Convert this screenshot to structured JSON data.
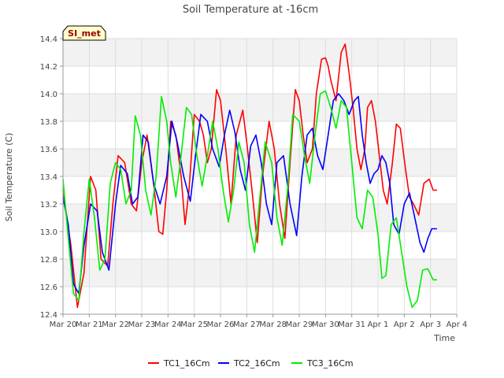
{
  "chart_data": {
    "type": "line",
    "title": "Soil Temperature at -16cm",
    "xlabel": "Time",
    "ylabel": "Soil Temperature (C)",
    "site_label": "SI_met",
    "ylim": [
      12.4,
      14.4
    ],
    "yticks": [
      12.4,
      12.6,
      12.8,
      13.0,
      13.2,
      13.4,
      13.6,
      13.8,
      14.0,
      14.2,
      14.4
    ],
    "xlim": [
      0,
      15
    ],
    "xticks": [
      0,
      1,
      2,
      3,
      4,
      5,
      6,
      7,
      8,
      9,
      10,
      11,
      12,
      13,
      14,
      15
    ],
    "xtick_labels": [
      "Mar 20",
      "Mar 21",
      "Mar 22",
      "Mar 23",
      "Mar 24",
      "Mar 25",
      "Mar 26",
      "Mar 27",
      "Mar 28",
      "Mar 29",
      "Mar 30",
      "Mar 31",
      "Apr 1",
      "Apr 2",
      "Apr 3",
      "Apr 4"
    ],
    "grid": true,
    "legend_position": "bottom",
    "series": [
      {
        "name": "TC1_16Cm",
        "color": "#ff0000",
        "x": [
          0.0,
          0.3,
          0.55,
          0.8,
          1.05,
          1.25,
          1.45,
          1.7,
          1.9,
          2.1,
          2.35,
          2.6,
          2.8,
          3.0,
          3.2,
          3.45,
          3.65,
          3.8,
          3.95,
          4.1,
          4.3,
          4.5,
          4.65,
          4.8,
          5.0,
          5.2,
          5.35,
          5.5,
          5.65,
          5.85,
          6.0,
          6.2,
          6.4,
          6.6,
          6.85,
          7.0,
          7.2,
          7.4,
          7.6,
          7.85,
          8.05,
          8.25,
          8.45,
          8.65,
          8.85,
          9.0,
          9.15,
          9.3,
          9.5,
          9.65,
          9.85,
          10.0,
          10.1,
          10.2,
          10.4,
          10.6,
          10.75,
          10.9,
          11.05,
          11.2,
          11.35,
          11.5,
          11.6,
          11.75,
          11.9,
          12.05,
          12.2,
          12.35,
          12.55,
          12.7,
          12.85,
          13.05,
          13.2,
          13.35,
          13.55,
          13.75,
          13.95,
          14.1,
          14.25
        ],
        "values": [
          13.3,
          12.9,
          12.45,
          12.7,
          13.4,
          13.3,
          12.8,
          12.75,
          13.2,
          13.55,
          13.5,
          13.2,
          13.15,
          13.5,
          13.7,
          13.35,
          13.0,
          12.98,
          13.3,
          13.8,
          13.7,
          13.4,
          13.05,
          13.3,
          13.85,
          13.8,
          13.7,
          13.5,
          13.6,
          14.03,
          13.95,
          13.6,
          13.2,
          13.7,
          13.88,
          13.65,
          13.3,
          12.92,
          13.4,
          13.8,
          13.6,
          13.2,
          12.95,
          13.5,
          14.03,
          13.95,
          13.7,
          13.5,
          13.6,
          14.0,
          14.25,
          14.26,
          14.2,
          14.1,
          13.95,
          14.3,
          14.36,
          14.15,
          13.9,
          13.6,
          13.45,
          13.6,
          13.9,
          13.95,
          13.8,
          13.55,
          13.3,
          13.2,
          13.5,
          13.78,
          13.75,
          13.45,
          13.25,
          13.2,
          13.12,
          13.35,
          13.38,
          13.3,
          13.3
        ]
      },
      {
        "name": "TC2_16Cm",
        "color": "#0000ff",
        "x": [
          0.0,
          0.2,
          0.4,
          0.6,
          0.8,
          1.05,
          1.3,
          1.5,
          1.75,
          2.0,
          2.2,
          2.45,
          2.65,
          2.85,
          3.05,
          3.25,
          3.45,
          3.7,
          3.95,
          4.15,
          4.35,
          4.6,
          4.85,
          5.05,
          5.25,
          5.5,
          5.7,
          5.95,
          6.15,
          6.35,
          6.55,
          6.75,
          6.95,
          7.15,
          7.35,
          7.55,
          7.75,
          7.95,
          8.15,
          8.4,
          8.65,
          8.9,
          9.1,
          9.3,
          9.5,
          9.7,
          9.9,
          10.1,
          10.3,
          10.5,
          10.7,
          10.9,
          11.1,
          11.25,
          11.4,
          11.55,
          11.7,
          11.85,
          12.0,
          12.15,
          12.3,
          12.45,
          12.6,
          12.8,
          13.0,
          13.2,
          13.4,
          13.6,
          13.75,
          13.9,
          14.05,
          14.25
        ],
        "values": [
          13.25,
          13.05,
          12.62,
          12.55,
          12.9,
          13.2,
          13.15,
          12.85,
          12.72,
          13.2,
          13.48,
          13.42,
          13.2,
          13.25,
          13.7,
          13.65,
          13.35,
          13.2,
          13.4,
          13.8,
          13.65,
          13.4,
          13.22,
          13.55,
          13.85,
          13.8,
          13.6,
          13.47,
          13.7,
          13.88,
          13.72,
          13.45,
          13.3,
          13.62,
          13.7,
          13.5,
          13.2,
          13.05,
          13.5,
          13.55,
          13.2,
          12.97,
          13.4,
          13.7,
          13.75,
          13.55,
          13.45,
          13.7,
          13.95,
          14.0,
          13.95,
          13.85,
          13.95,
          13.98,
          13.7,
          13.5,
          13.35,
          13.42,
          13.45,
          13.55,
          13.5,
          13.35,
          13.05,
          12.98,
          13.2,
          13.28,
          13.1,
          12.92,
          12.85,
          12.95,
          13.02,
          13.02
        ]
      },
      {
        "name": "TC3_16Cm",
        "color": "#00ee00",
        "x": [
          0.0,
          0.2,
          0.4,
          0.6,
          0.8,
          1.0,
          1.2,
          1.4,
          1.6,
          1.8,
          2.0,
          2.2,
          2.4,
          2.6,
          2.75,
          2.95,
          3.15,
          3.35,
          3.55,
          3.75,
          3.95,
          4.1,
          4.3,
          4.5,
          4.7,
          4.9,
          5.1,
          5.3,
          5.5,
          5.7,
          5.9,
          6.1,
          6.3,
          6.5,
          6.7,
          6.9,
          7.1,
          7.3,
          7.5,
          7.7,
          7.95,
          8.15,
          8.35,
          8.55,
          8.75,
          9.0,
          9.2,
          9.4,
          9.6,
          9.8,
          10.0,
          10.2,
          10.4,
          10.6,
          10.8,
          11.0,
          11.2,
          11.4,
          11.6,
          11.8,
          12.0,
          12.15,
          12.3,
          12.5,
          12.7,
          12.9,
          13.1,
          13.3,
          13.5,
          13.7,
          13.9,
          14.1,
          14.25
        ],
        "values": [
          13.38,
          12.95,
          12.55,
          12.5,
          13.0,
          13.38,
          13.1,
          12.72,
          12.8,
          13.35,
          13.5,
          13.45,
          13.2,
          13.3,
          13.84,
          13.7,
          13.3,
          13.12,
          13.4,
          13.98,
          13.8,
          13.5,
          13.25,
          13.55,
          13.9,
          13.85,
          13.55,
          13.33,
          13.55,
          13.8,
          13.6,
          13.3,
          13.07,
          13.3,
          13.65,
          13.5,
          13.05,
          12.85,
          13.25,
          13.65,
          13.5,
          13.1,
          12.9,
          13.3,
          13.85,
          13.8,
          13.55,
          13.35,
          13.7,
          14.0,
          14.02,
          13.9,
          13.75,
          13.95,
          13.9,
          13.5,
          13.1,
          13.02,
          13.3,
          13.25,
          12.98,
          12.66,
          12.68,
          13.05,
          13.1,
          12.85,
          12.6,
          12.45,
          12.5,
          12.72,
          12.73,
          12.65,
          12.65
        ]
      }
    ]
  }
}
